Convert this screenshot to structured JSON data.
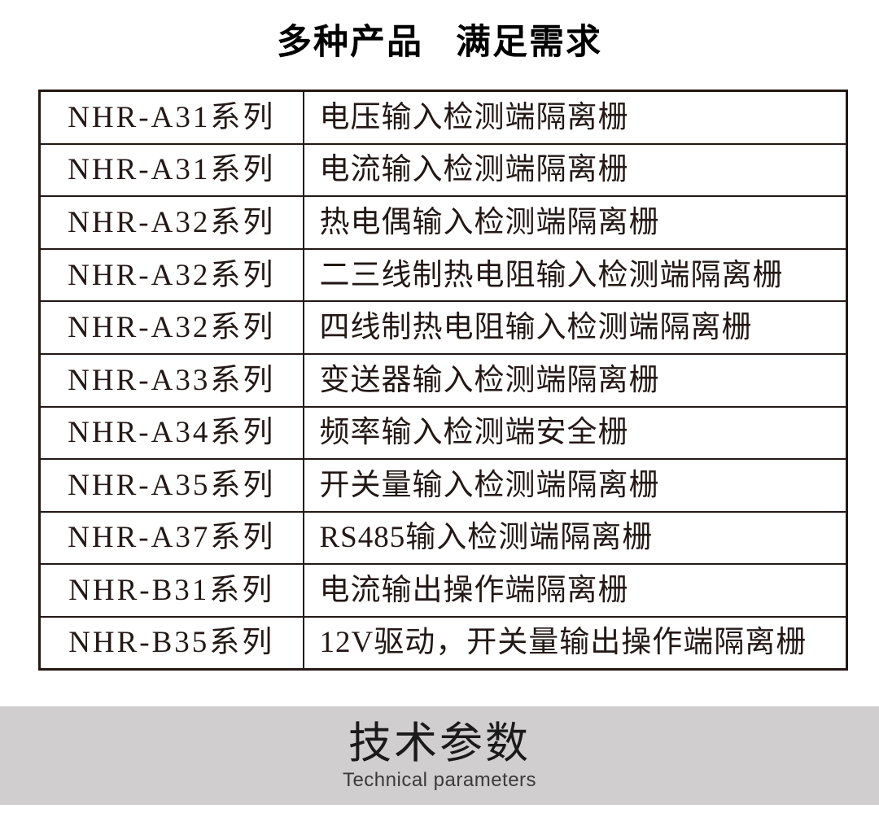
{
  "page": {
    "title_part1": "多种产品",
    "title_part2": "满足需求"
  },
  "product_table": {
    "rows": [
      {
        "series": "NHR-A31系列",
        "description": "电压输入检测端隔离栅"
      },
      {
        "series": "NHR-A31系列",
        "description": "电流输入检测端隔离栅"
      },
      {
        "series": "NHR-A32系列",
        "description": "热电偶输入检测端隔离栅"
      },
      {
        "series": "NHR-A32系列",
        "description": "二三线制热电阻输入检测端隔离栅"
      },
      {
        "series": "NHR-A32系列",
        "description": "四线制热电阻输入检测端隔离栅"
      },
      {
        "series": "NHR-A33系列",
        "description": "变送器输入检测端隔离栅"
      },
      {
        "series": "NHR-A34系列",
        "description": "频率输入检测端安全栅"
      },
      {
        "series": "NHR-A35系列",
        "description": "开关量输入检测端隔离栅"
      },
      {
        "series": "NHR-A37系列",
        "description": "RS485输入检测端隔离栅"
      },
      {
        "series": "NHR-B31系列",
        "description": "电流输出操作端隔离栅"
      },
      {
        "series": "NHR-B35系列",
        "description": "12V驱动，开关量输出操作端隔离栅"
      }
    ]
  },
  "section_banner": {
    "title": "技术参数",
    "subtitle": "Technical parameters"
  },
  "colors": {
    "text": "#231815",
    "banner_bg": "#d0cecf",
    "banner_title": "#1a1a1a",
    "banner_subtitle": "#3a3a3a"
  }
}
